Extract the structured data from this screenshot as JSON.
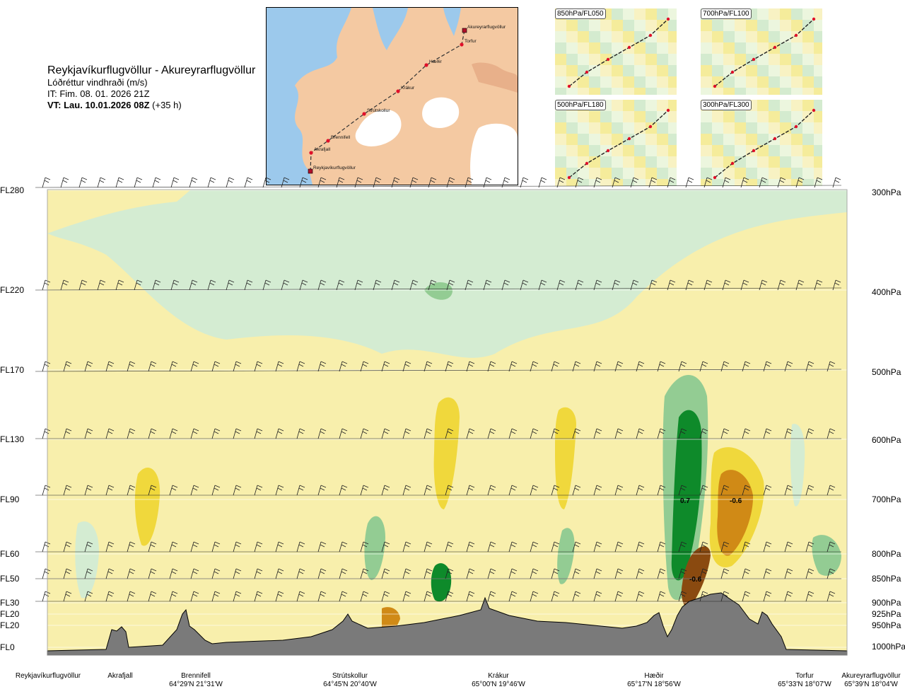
{
  "header": {
    "route": "Reykjavíkurflugvöllur - Akureyrarflugvöllur",
    "parameter": "Lóðréttur vindhraði (m/s)",
    "issue_time": "IT: Fim. 08. 01. 2026 21Z",
    "valid_time": "VT: Lau. 10.01.2026 08Z",
    "lead_time": "(+35 h)"
  },
  "route_map": {
    "waypoints": [
      "Akureyrarflugvöllur",
      "Torfur",
      "Hæðir",
      "Krákur",
      "Strútskollur",
      "Brennifell",
      "Akrafjall",
      "Reykjavíkurflugvöllur"
    ]
  },
  "thumbnails": [
    "850hPa/FL050",
    "700hPa/FL100",
    "500hPa/FL180",
    "300hPa/FL300"
  ],
  "levels": [
    {
      "fl": "FL280",
      "hpa": "300hPa"
    },
    {
      "fl": "FL220",
      "hpa": "400hPa"
    },
    {
      "fl": "FL170",
      "hpa": "500hPa"
    },
    {
      "fl": "FL130",
      "hpa": "600hPa"
    },
    {
      "fl": "FL90",
      "hpa": "700hPa"
    },
    {
      "fl": "FL60",
      "hpa": "800hPa"
    },
    {
      "fl": "FL50",
      "hpa": "850hPa"
    },
    {
      "fl": "FL30",
      "hpa": "900hPa"
    },
    {
      "fl": "FL20",
      "hpa": "925hPa"
    },
    {
      "fl": "FL20",
      "hpa": "950hPa"
    },
    {
      "fl": "FL0",
      "hpa": "1000hPa"
    }
  ],
  "value_labels": [
    "0.7",
    "-0.6",
    "-0.6"
  ],
  "stations": [
    {
      "name": "Reykjavíkurflugvöllur",
      "coord": ""
    },
    {
      "name": "Akrafjall",
      "coord": ""
    },
    {
      "name": "Brennifell",
      "coord": "64°29'N 21°31'W"
    },
    {
      "name": "Strútskollur",
      "coord": "64°45'N 20°40'W"
    },
    {
      "name": "Krákur",
      "coord": "65°00'N 19°46'W"
    },
    {
      "name": "Hæðir",
      "coord": "65°17'N 18°56'W"
    },
    {
      "name": "Torfur",
      "coord": "65°33'N 18°07'W"
    },
    {
      "name": "Akureyrarflugvöllur",
      "coord": "65°39'N 18°04'W"
    }
  ],
  "colors": {
    "sea": "#9cc9ec",
    "land": "#f4c9a2",
    "ice": "#ffffff",
    "terrain": "#7a7a7a",
    "up_light": "#d4ecd2",
    "up_mid": "#93cc93",
    "up_strong": "#0e8a2a",
    "down_light": "#f8efac",
    "down_mid": "#f0d83c",
    "down_strong": "#d08a16",
    "down_extreme": "#8a4a10"
  }
}
